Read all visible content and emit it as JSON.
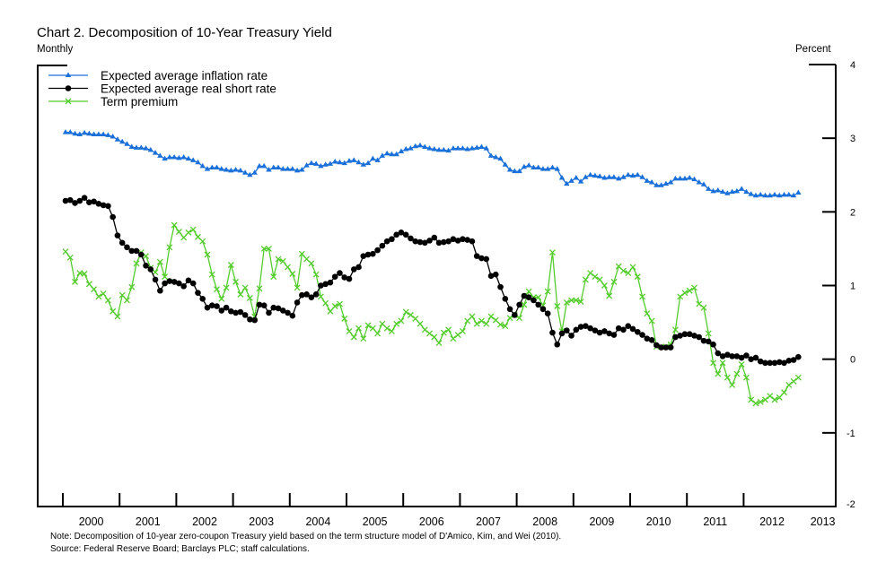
{
  "chart_data": {
    "type": "line",
    "title": "Chart 2. Decomposition of 10-Year Treasury Yield",
    "subtitle": "Monthly",
    "ylabel": "Percent",
    "xlabel": "",
    "frequency": "monthly",
    "x_start": "2000-01",
    "x_end": "2012-12",
    "xlim": [
      2000,
      2013
    ],
    "ylim": [
      -2,
      4
    ],
    "x_tick_labels": [
      "2000",
      "2001",
      "2002",
      "2003",
      "2004",
      "2005",
      "2006",
      "2007",
      "2008",
      "2009",
      "2010",
      "2011",
      "2012",
      "2013"
    ],
    "y_ticks": [
      -2,
      -1,
      0,
      1,
      2,
      3,
      4
    ],
    "y_tick_labels": [
      "-2",
      "-1",
      "0",
      "1",
      "2",
      "3",
      "4"
    ],
    "y_axis_side": "right",
    "grid": false,
    "legend_position": "top-left",
    "series": [
      {
        "name": "Expected average inflation rate",
        "color": "#1a6fd8",
        "marker": "triangle",
        "values": [
          3.08,
          3.08,
          3.06,
          3.05,
          3.07,
          3.06,
          3.05,
          3.05,
          3.05,
          3.04,
          3.02,
          2.98,
          2.95,
          2.92,
          2.88,
          2.87,
          2.87,
          2.86,
          2.84,
          2.8,
          2.76,
          2.72,
          2.74,
          2.74,
          2.73,
          2.74,
          2.72,
          2.7,
          2.67,
          2.62,
          2.58,
          2.6,
          2.6,
          2.58,
          2.57,
          2.56,
          2.57,
          2.56,
          2.53,
          2.5,
          2.53,
          2.62,
          2.62,
          2.57,
          2.6,
          2.6,
          2.58,
          2.58,
          2.58,
          2.56,
          2.57,
          2.63,
          2.66,
          2.65,
          2.62,
          2.64,
          2.65,
          2.68,
          2.67,
          2.66,
          2.69,
          2.7,
          2.67,
          2.64,
          2.66,
          2.72,
          2.7,
          2.76,
          2.79,
          2.78,
          2.78,
          2.82,
          2.85,
          2.86,
          2.89,
          2.9,
          2.88,
          2.86,
          2.85,
          2.84,
          2.84,
          2.83,
          2.86,
          2.86,
          2.86,
          2.85,
          2.86,
          2.87,
          2.88,
          2.86,
          2.76,
          2.74,
          2.72,
          2.64,
          2.57,
          2.55,
          2.55,
          2.61,
          2.63,
          2.6,
          2.6,
          2.58,
          2.58,
          2.6,
          2.58,
          2.46,
          2.38,
          2.42,
          2.46,
          2.41,
          2.47,
          2.5,
          2.49,
          2.48,
          2.46,
          2.47,
          2.47,
          2.45,
          2.47,
          2.5,
          2.49,
          2.5,
          2.47,
          2.42,
          2.4,
          2.36,
          2.36,
          2.38,
          2.4,
          2.45,
          2.45,
          2.45,
          2.46,
          2.44,
          2.4,
          2.37,
          2.31,
          2.28,
          2.29,
          2.27,
          2.25,
          2.27,
          2.28,
          2.31,
          2.27,
          2.24,
          2.22,
          2.23,
          2.22,
          2.22,
          2.23,
          2.22,
          2.23,
          2.23,
          2.22,
          2.26
        ]
      },
      {
        "name": "Expected average real short rate",
        "color": "#000000",
        "marker": "circle",
        "values": [
          2.15,
          2.16,
          2.12,
          2.15,
          2.19,
          2.13,
          2.14,
          2.11,
          2.09,
          2.08,
          1.93,
          1.68,
          1.58,
          1.52,
          1.47,
          1.47,
          1.42,
          1.27,
          1.22,
          1.08,
          0.93,
          1.03,
          1.06,
          1.05,
          1.03,
          0.99,
          1.07,
          1.03,
          0.9,
          0.82,
          0.7,
          0.73,
          0.72,
          0.66,
          0.7,
          0.65,
          0.63,
          0.64,
          0.6,
          0.54,
          0.53,
          0.74,
          0.73,
          0.63,
          0.7,
          0.69,
          0.66,
          0.63,
          0.59,
          0.77,
          0.87,
          0.88,
          0.84,
          0.88,
          1.0,
          1.02,
          1.04,
          1.12,
          1.17,
          1.11,
          1.09,
          1.22,
          1.25,
          1.4,
          1.42,
          1.43,
          1.48,
          1.54,
          1.6,
          1.63,
          1.69,
          1.72,
          1.69,
          1.64,
          1.6,
          1.59,
          1.58,
          1.61,
          1.65,
          1.58,
          1.59,
          1.6,
          1.63,
          1.61,
          1.63,
          1.62,
          1.6,
          1.4,
          1.37,
          1.36,
          1.13,
          1.15,
          0.98,
          0.82,
          0.68,
          0.6,
          0.74,
          0.86,
          0.84,
          0.8,
          0.74,
          0.68,
          0.62,
          0.36,
          0.2,
          0.35,
          0.39,
          0.32,
          0.4,
          0.44,
          0.45,
          0.42,
          0.39,
          0.36,
          0.38,
          0.35,
          0.33,
          0.42,
          0.4,
          0.45,
          0.41,
          0.37,
          0.33,
          0.28,
          0.26,
          0.19,
          0.16,
          0.16,
          0.16,
          0.3,
          0.32,
          0.34,
          0.34,
          0.32,
          0.3,
          0.25,
          0.24,
          0.2,
          0.08,
          0.04,
          0.06,
          0.04,
          0.04,
          0.02,
          0.05,
          0.0,
          0.02,
          -0.03,
          -0.05,
          -0.05,
          -0.05,
          -0.04,
          -0.05,
          -0.02,
          -0.01,
          0.03
        ]
      },
      {
        "name": "Term premium",
        "color": "#55cc2e",
        "marker": "x",
        "values": [
          1.46,
          1.38,
          1.05,
          1.17,
          1.16,
          1.02,
          0.95,
          0.85,
          0.89,
          0.8,
          0.65,
          0.58,
          0.87,
          0.8,
          0.98,
          1.3,
          1.45,
          1.4,
          1.24,
          1.18,
          1.32,
          1.12,
          1.52,
          1.82,
          1.73,
          1.65,
          1.72,
          1.76,
          1.66,
          1.6,
          1.42,
          1.15,
          0.95,
          0.82,
          0.97,
          1.28,
          1.05,
          0.88,
          0.97,
          0.83,
          0.58,
          0.96,
          1.5,
          1.5,
          1.12,
          1.36,
          1.33,
          1.25,
          1.16,
          0.97,
          1.43,
          1.36,
          1.3,
          1.15,
          0.85,
          0.76,
          0.65,
          0.72,
          0.75,
          0.55,
          0.38,
          0.3,
          0.42,
          0.28,
          0.46,
          0.42,
          0.35,
          0.48,
          0.42,
          0.38,
          0.48,
          0.52,
          0.64,
          0.6,
          0.55,
          0.48,
          0.4,
          0.35,
          0.3,
          0.22,
          0.36,
          0.4,
          0.28,
          0.33,
          0.38,
          0.52,
          0.58,
          0.48,
          0.52,
          0.48,
          0.58,
          0.53,
          0.47,
          0.45,
          0.56,
          0.6,
          0.56,
          0.74,
          0.92,
          0.84,
          0.84,
          0.73,
          0.92,
          1.45,
          0.72,
          0.38,
          0.77,
          0.8,
          0.8,
          0.78,
          1.08,
          1.17,
          1.12,
          1.08,
          1.0,
          0.86,
          1.05,
          1.26,
          1.2,
          1.17,
          1.25,
          1.12,
          0.85,
          0.62,
          0.52,
          0.17,
          0.17,
          0.17,
          0.2,
          0.4,
          0.85,
          0.9,
          0.93,
          0.97,
          0.75,
          0.7,
          0.35,
          -0.05,
          -0.2,
          -0.05,
          -0.25,
          -0.35,
          -0.2,
          -0.07,
          -0.25,
          -0.55,
          -0.6,
          -0.58,
          -0.55,
          -0.5,
          -0.55,
          -0.52,
          -0.45,
          -0.35,
          -0.3,
          -0.25
        ]
      }
    ]
  },
  "notes": {
    "note": "Note:  Decomposition of 10-year zero-coupon Treasury yield based on the term structure model of D'Amico, Kim, and Wei (2010).",
    "source": "Source:  Federal Reserve Board; Barclays PLC; staff calculations."
  }
}
